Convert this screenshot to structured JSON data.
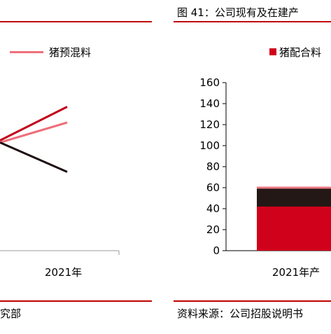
{
  "left_panel": {
    "legend_label": "猪预混料",
    "x_tick": "2021年",
    "source_fragment": "究部",
    "colors": {
      "rule": "#c00000"
    }
  },
  "right_panel": {
    "title": "图 41：公司现有及在建产",
    "legend_label": "猪配合料",
    "x_tick": "2021年产",
    "source": "资料来源：公司招股说明书",
    "colors": {
      "rule": "#c00000"
    }
  },
  "chart_data": [
    {
      "type": "line",
      "x": [
        "",
        "2021年"
      ],
      "series": [
        {
          "color": "#c0001a",
          "values": [
            null,
            137
          ]
        },
        {
          "name": "猪预混料",
          "color": "#ee6f7a",
          "values": [
            null,
            122
          ]
        },
        {
          "color": "#1e1010",
          "values": [
            null,
            75
          ]
        }
      ],
      "partial_values_start": {
        "series0": 105,
        "series1": 103,
        "series2": 103
      }
    },
    {
      "type": "bar",
      "stacked": true,
      "categories": [
        "2021年产"
      ],
      "ylim": [
        0,
        160
      ],
      "yticks": [
        "0",
        "20",
        "40",
        "60",
        "80",
        "100",
        "120",
        "140",
        "160"
      ],
      "series": [
        {
          "name": "猪配合料",
          "color": "#d0021b",
          "values": [
            42
          ]
        },
        {
          "color": "#231815",
          "values": [
            17
          ]
        },
        {
          "color": "#ef7a86",
          "values": [
            2
          ]
        }
      ]
    }
  ]
}
